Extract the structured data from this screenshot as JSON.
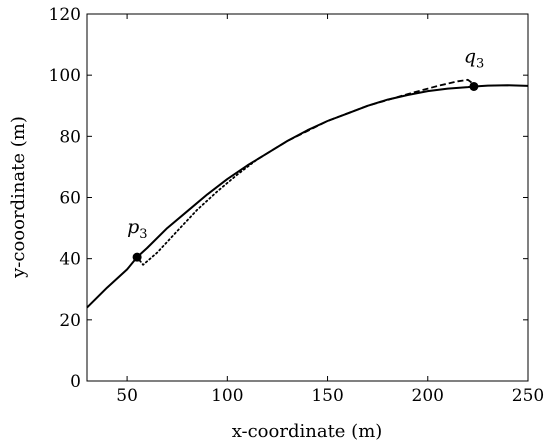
{
  "chart_data": {
    "type": "line",
    "xlabel": "x-coordinate (m)",
    "ylabel": "y-cooordinate (m)",
    "xlim": [
      30,
      250
    ],
    "ylim": [
      0,
      120
    ],
    "xticks": [
      50,
      100,
      150,
      200,
      250
    ],
    "yticks": [
      0,
      20,
      40,
      60,
      80,
      100,
      120
    ],
    "grid": false,
    "series": [
      {
        "style": "solid",
        "color": "#000000",
        "points": [
          [
            30,
            24
          ],
          [
            40,
            30.5
          ],
          [
            50,
            36.5
          ],
          [
            55,
            40.5
          ],
          [
            60,
            43.5
          ],
          [
            70,
            50
          ],
          [
            80,
            55.5
          ],
          [
            90,
            61
          ],
          [
            100,
            66
          ],
          [
            110,
            70.5
          ],
          [
            120,
            74.5
          ],
          [
            130,
            78.5
          ],
          [
            140,
            82
          ],
          [
            150,
            85
          ],
          [
            160,
            87.5
          ],
          [
            170,
            90
          ],
          [
            180,
            92
          ],
          [
            190,
            93.5
          ],
          [
            200,
            94.8
          ],
          [
            210,
            95.6
          ],
          [
            220,
            96.1
          ],
          [
            223,
            96.3
          ],
          [
            230,
            96.6
          ],
          [
            240,
            96.7
          ],
          [
            250,
            96.5
          ]
        ]
      },
      {
        "style": "dotted",
        "color": "#000000",
        "points": [
          [
            55,
            40.5
          ],
          [
            58,
            38
          ],
          [
            65,
            42
          ],
          [
            75,
            49
          ],
          [
            85,
            56
          ],
          [
            95,
            62
          ],
          [
            105,
            67.5
          ],
          [
            115,
            72.5
          ]
        ]
      },
      {
        "style": "dashed",
        "color": "#000000",
        "points": [
          [
            115,
            72.5
          ],
          [
            130,
            78.5
          ],
          [
            150,
            85
          ],
          [
            170,
            90
          ],
          [
            190,
            93.8
          ],
          [
            205,
            96.5
          ],
          [
            215,
            98
          ],
          [
            220,
            98.5
          ],
          [
            222,
            97.5
          ]
        ]
      }
    ],
    "markers": [
      {
        "label": "p",
        "sub": "3",
        "x": 55,
        "y": 40.5,
        "label_side": "above-left"
      },
      {
        "label": "q",
        "sub": "3",
        "x": 223,
        "y": 96.3,
        "label_side": "above-left"
      }
    ]
  }
}
